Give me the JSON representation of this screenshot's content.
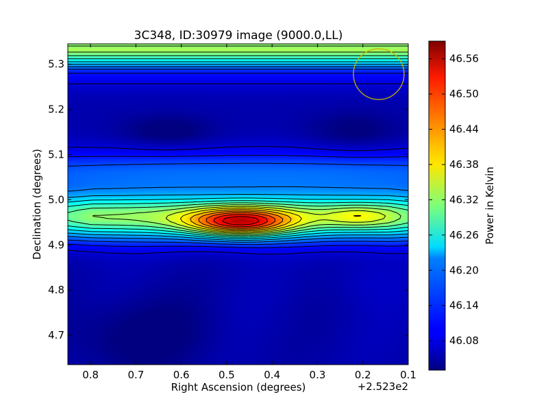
{
  "chart_data": {
    "type": "heatmap",
    "title": "3C348, ID:30979 image (9000.0,LL)",
    "xlabel": "Right Ascension (degrees)",
    "ylabel": "Declination (degrees)",
    "x_offset_label": "+2.523e2",
    "xlim": [
      0.85,
      0.1
    ],
    "ylim": [
      4.635,
      5.345
    ],
    "x_ticks": [
      0.8,
      0.7,
      0.6,
      0.5,
      0.4,
      0.3,
      0.2,
      0.1
    ],
    "x_tick_labels": [
      "0.8",
      "0.7",
      "0.6",
      "0.5",
      "0.4",
      "0.3",
      "0.2",
      "0.1"
    ],
    "y_ticks": [
      4.7,
      4.8,
      4.9,
      5.0,
      5.1,
      5.2,
      5.3
    ],
    "y_tick_labels": [
      "4.7",
      "4.8",
      "4.9",
      "5.0",
      "5.1",
      "5.2",
      "5.3"
    ],
    "colorbar": {
      "label": "Power in Kelvin",
      "range": [
        46.03,
        46.59
      ],
      "ticks": [
        46.08,
        46.14,
        46.2,
        46.26,
        46.32,
        46.38,
        46.44,
        46.5,
        46.56
      ],
      "tick_labels": [
        "46.08",
        "46.14",
        "46.20",
        "46.26",
        "46.32",
        "46.38",
        "46.44",
        "46.50",
        "46.56"
      ],
      "colormap": "jet"
    },
    "peak": {
      "ra": 0.47,
      "dec": 4.95,
      "value": 46.57
    },
    "secondary_peak": {
      "ra": 0.21,
      "dec": 4.963,
      "value": 46.46
    },
    "beam_marker": {
      "ra": 0.165,
      "dec": 5.278,
      "color": "#c8b400"
    },
    "contour_color": "#000000"
  }
}
